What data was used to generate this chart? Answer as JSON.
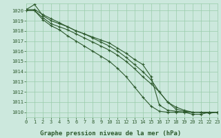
{
  "title": "Graphe pression niveau de la mer (hPa)",
  "background_color": "#cce8dd",
  "grid_color": "#99ccaa",
  "line_color": "#2d5a2d",
  "marker_color": "#2d5a2d",
  "tick_color": "#2d5a2d",
  "label_color": "#2d5a2d",
  "xlim": [
    0,
    23
  ],
  "ylim": [
    1009.5,
    1020.7
  ],
  "yticks": [
    1010,
    1011,
    1012,
    1013,
    1014,
    1015,
    1016,
    1017,
    1018,
    1019,
    1020
  ],
  "xticks": [
    0,
    1,
    2,
    3,
    4,
    5,
    6,
    7,
    8,
    9,
    10,
    11,
    12,
    13,
    14,
    15,
    16,
    17,
    18,
    19,
    20,
    21,
    22,
    23
  ],
  "series": [
    [
      1020.1,
      1020.1,
      1019.6,
      1019.2,
      1018.8,
      1018.4,
      1018.0,
      1017.7,
      1017.4,
      1017.1,
      1016.8,
      1016.3,
      1015.8,
      1015.2,
      1014.7,
      1013.5,
      1010.7,
      1010.2,
      1010.1,
      1010.0,
      1010.0,
      1010.0,
      1010.0,
      1010.0
    ],
    [
      1020.1,
      1020.6,
      1019.5,
      1019.0,
      1018.7,
      1018.4,
      1018.0,
      1017.7,
      1017.3,
      1016.9,
      1016.5,
      1016.0,
      1015.4,
      1014.7,
      1014.0,
      1013.2,
      1012.0,
      1011.0,
      1010.5,
      1010.2,
      1010.0,
      1010.0,
      1010.0,
      1010.0
    ],
    [
      1020.0,
      1020.0,
      1019.3,
      1018.7,
      1018.4,
      1018.1,
      1017.7,
      1017.3,
      1016.9,
      1016.5,
      1016.1,
      1015.6,
      1015.0,
      1014.3,
      1013.5,
      1012.8,
      1012.0,
      1011.0,
      1010.3,
      1010.1,
      1010.0,
      1010.0,
      1009.9,
      1010.0
    ],
    [
      1020.0,
      1020.0,
      1019.1,
      1018.5,
      1018.1,
      1017.5,
      1017.0,
      1016.5,
      1016.0,
      1015.5,
      1015.0,
      1014.3,
      1013.5,
      1012.5,
      1011.5,
      1010.6,
      1010.1,
      1010.0,
      1010.0,
      1010.0,
      1009.8,
      1009.8,
      1010.0,
      1010.0
    ]
  ]
}
